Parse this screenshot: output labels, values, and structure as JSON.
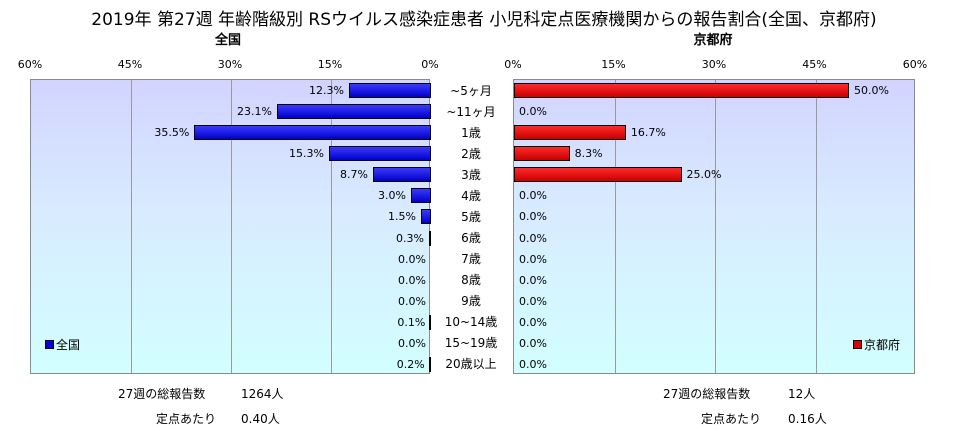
{
  "title": "2019年 第27週 年齢階級別 RSウイルス感染症患者 小児科定点医療機関からの報告割合(全国、京都府)",
  "chart_data": [
    {
      "type": "bar",
      "orientation": "horizontal",
      "direction": "right-to-left",
      "title": "全国",
      "legend": "全国",
      "legend_position": "bottom-left",
      "color": "#0000dd",
      "xlim": [
        0,
        60
      ],
      "ticks": [
        "60%",
        "45%",
        "30%",
        "15%",
        "0%"
      ],
      "categories": [
        "~5ヶ月",
        "~11ヶ月",
        "1歳",
        "2歳",
        "3歳",
        "4歳",
        "5歳",
        "6歳",
        "7歳",
        "8歳",
        "9歳",
        "10~14歳",
        "15~19歳",
        "20歳以上"
      ],
      "values": [
        12.3,
        23.1,
        35.5,
        15.3,
        8.7,
        3.0,
        1.5,
        0.3,
        0.0,
        0.0,
        0.0,
        0.1,
        0.0,
        0.2
      ],
      "labels": [
        "12.3%",
        "23.1%",
        "35.5%",
        "15.3%",
        "8.7%",
        "3.0%",
        "1.5%",
        "0.3%",
        "0.0%",
        "0.0%",
        "0.0%",
        "0.1%",
        "0.0%",
        "0.2%"
      ],
      "grid": true
    },
    {
      "type": "bar",
      "orientation": "horizontal",
      "direction": "left-to-right",
      "title": "京都府",
      "legend": "京都府",
      "legend_position": "bottom-right",
      "color": "#dd0000",
      "xlim": [
        0,
        60
      ],
      "ticks": [
        "0%",
        "15%",
        "30%",
        "45%",
        "60%"
      ],
      "categories": [
        "~5ヶ月",
        "~11ヶ月",
        "1歳",
        "2歳",
        "3歳",
        "4歳",
        "5歳",
        "6歳",
        "7歳",
        "8歳",
        "9歳",
        "10~14歳",
        "15~19歳",
        "20歳以上"
      ],
      "values": [
        50.0,
        0.0,
        16.7,
        8.3,
        25.0,
        0.0,
        0.0,
        0.0,
        0.0,
        0.0,
        0.0,
        0.0,
        0.0,
        0.0
      ],
      "labels": [
        "50.0%",
        "0.0%",
        "16.7%",
        "8.3%",
        "25.0%",
        "0.0%",
        "0.0%",
        "0.0%",
        "0.0%",
        "0.0%",
        "0.0%",
        "0.0%",
        "0.0%",
        "0.0%"
      ],
      "grid": true
    }
  ],
  "categories_display": [
    "~5ヶ月",
    "~11ヶ月",
    "1歳",
    "2歳",
    "3歳",
    "4歳",
    "5歳",
    "6歳",
    "7歳",
    "8歳",
    "9歳",
    "10~14歳",
    "15~19歳",
    "20歳以上"
  ],
  "summary": {
    "national": {
      "total_label": "27週の総報告数",
      "total_value": "1264人",
      "per_site_label": "定点あたり",
      "per_site_value": "0.40人"
    },
    "kyoto": {
      "total_label": "27週の総報告数",
      "total_value": "12人",
      "per_site_label": "定点あたり",
      "per_site_value": "0.16人"
    }
  }
}
